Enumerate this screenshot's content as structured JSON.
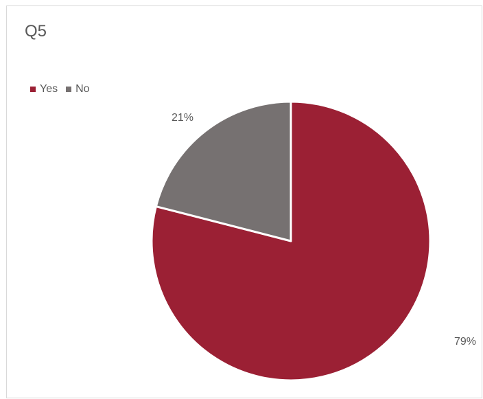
{
  "chart_data": {
    "type": "pie",
    "title": "Q5",
    "categories": [
      "Yes",
      "No"
    ],
    "values": [
      79,
      21
    ],
    "data_labels": [
      "79%",
      "21%"
    ],
    "colors": [
      "#9b2034",
      "#767171"
    ],
    "legend_position": "top-left"
  }
}
